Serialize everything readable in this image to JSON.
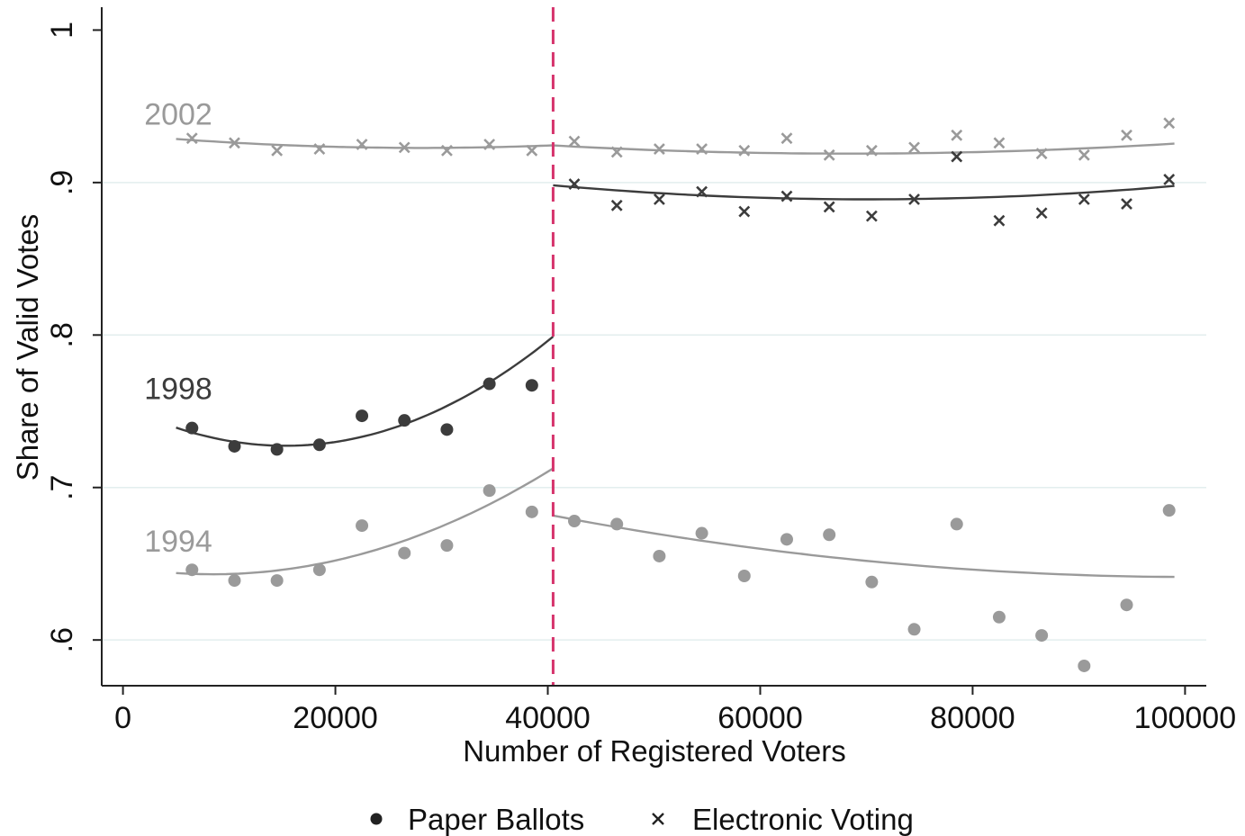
{
  "chart_data": {
    "type": "scatter",
    "xlabel": "Number of Registered Voters",
    "ylabel": "Share of Valid Votes",
    "xlim": [
      -2000,
      102000
    ],
    "ylim": [
      0.57,
      1.015
    ],
    "xticks": [
      0,
      20000,
      40000,
      60000,
      80000,
      100000
    ],
    "xtick_labels": [
      "0",
      "20000",
      "40000",
      "60000",
      "80000",
      "100000"
    ],
    "yticks": [
      0.6,
      0.7,
      0.8,
      0.9,
      1.0
    ],
    "ytick_labels": [
      ".6",
      ".7",
      ".8",
      ".9",
      "1"
    ],
    "grid": "horizontal",
    "threshold": {
      "x": 40500,
      "color": "#d6336c",
      "style": "dashed"
    },
    "colors": {
      "light": "#9a9a9a",
      "dark": "#3c3c3c",
      "threshold": "#d6336c"
    },
    "series_labels": [
      {
        "text": "2002",
        "x": 2000,
        "y": 0.938,
        "color": "#9a9a9a"
      },
      {
        "text": "1998",
        "x": 2000,
        "y": 0.758,
        "color": "#3c3c3c"
      },
      {
        "text": "1994",
        "x": 2000,
        "y": 0.658,
        "color": "#9a9a9a"
      }
    ],
    "legend": {
      "placement": "bottom",
      "items": [
        {
          "marker": "dot",
          "label": "Paper Ballots"
        },
        {
          "marker": "x",
          "label": "Electronic Voting"
        }
      ]
    },
    "series": [
      {
        "group": "1994",
        "marker": "dot",
        "color": "#9a9a9a",
        "x": [
          6500,
          10500,
          14500,
          18500,
          22500,
          26500,
          30500,
          34500,
          38500
        ],
        "y": [
          0.646,
          0.639,
          0.639,
          0.646,
          0.675,
          0.657,
          0.662,
          0.698,
          0.684
        ]
      },
      {
        "group": "1994",
        "marker": "dot",
        "color": "#9a9a9a",
        "x": [
          42500,
          46500,
          50500,
          54500,
          58500,
          62500,
          66500,
          70500,
          74500,
          78500,
          82500,
          86500,
          90500,
          94500,
          98500
        ],
        "y": [
          0.678,
          0.676,
          0.655,
          0.67,
          0.642,
          0.666,
          0.669,
          0.638,
          0.607,
          0.676,
          0.615,
          0.603,
          0.583,
          0.623,
          0.685
        ]
      },
      {
        "group": "1998",
        "marker": "dot",
        "color": "#3c3c3c",
        "x": [
          6500,
          10500,
          14500,
          18500,
          22500,
          26500,
          30500,
          34500,
          38500
        ],
        "y": [
          0.739,
          0.727,
          0.725,
          0.728,
          0.747,
          0.744,
          0.738,
          0.768,
          0.767
        ]
      },
      {
        "group": "1998",
        "marker": "x",
        "color": "#3c3c3c",
        "x": [
          42500,
          46500,
          50500,
          54500,
          58500,
          62500,
          66500,
          70500,
          74500,
          78500,
          82500,
          86500,
          90500,
          94500,
          98500
        ],
        "y": [
          0.899,
          0.885,
          0.889,
          0.894,
          0.881,
          0.891,
          0.884,
          0.878,
          0.889,
          0.917,
          0.875,
          0.88,
          0.889,
          0.886,
          0.902
        ]
      },
      {
        "group": "2002",
        "marker": "x",
        "color": "#9a9a9a",
        "x": [
          6500,
          10500,
          14500,
          18500,
          22500,
          26500,
          30500,
          34500,
          38500,
          42500,
          46500,
          50500,
          54500,
          58500,
          62500,
          66500,
          70500,
          74500,
          78500,
          82500,
          86500,
          90500,
          94500,
          98500
        ],
        "y": [
          0.929,
          0.926,
          0.921,
          0.922,
          0.925,
          0.923,
          0.921,
          0.925,
          0.921,
          0.927,
          0.92,
          0.922,
          0.922,
          0.921,
          0.929,
          0.918,
          0.921,
          0.923,
          0.931,
          0.926,
          0.919,
          0.918,
          0.931,
          0.939
        ]
      }
    ],
    "fits": [
      {
        "group": "2002",
        "color": "#9a9a9a",
        "x_range": [
          5000,
          40500
        ],
        "coef": [
          0.9314,
          -6.18e-07,
          1.1e-11
        ]
      },
      {
        "group": "2002",
        "color": "#9a9a9a",
        "x_range": [
          40500,
          99000
        ],
        "coef": [
          0.95137,
          -9.49e-07,
          6.95e-12
        ]
      },
      {
        "group": "1998",
        "color": "#3c3c3c",
        "x_range": [
          40500,
          99000
        ],
        "coef": [
          0.94063,
          -1.4725e-06,
          1.05e-11
        ]
      },
      {
        "group": "1998",
        "color": "#3c3c3c",
        "x_range": [
          5000,
          40500
        ],
        "coef": [
          0.75363,
          -3.4375e-06,
          1.125e-10
        ]
      },
      {
        "group": "1994",
        "color": "#9a9a9a",
        "x_range": [
          5000,
          40500
        ],
        "coef": [
          0.64788,
          -1.1375e-06,
          6.75e-11
        ]
      },
      {
        "group": "1994",
        "color": "#9a9a9a",
        "x_range": [
          40500,
          99000
        ],
        "coef": [
          0.75355,
          -2.2225e-06,
          1.1e-11
        ]
      }
    ]
  }
}
